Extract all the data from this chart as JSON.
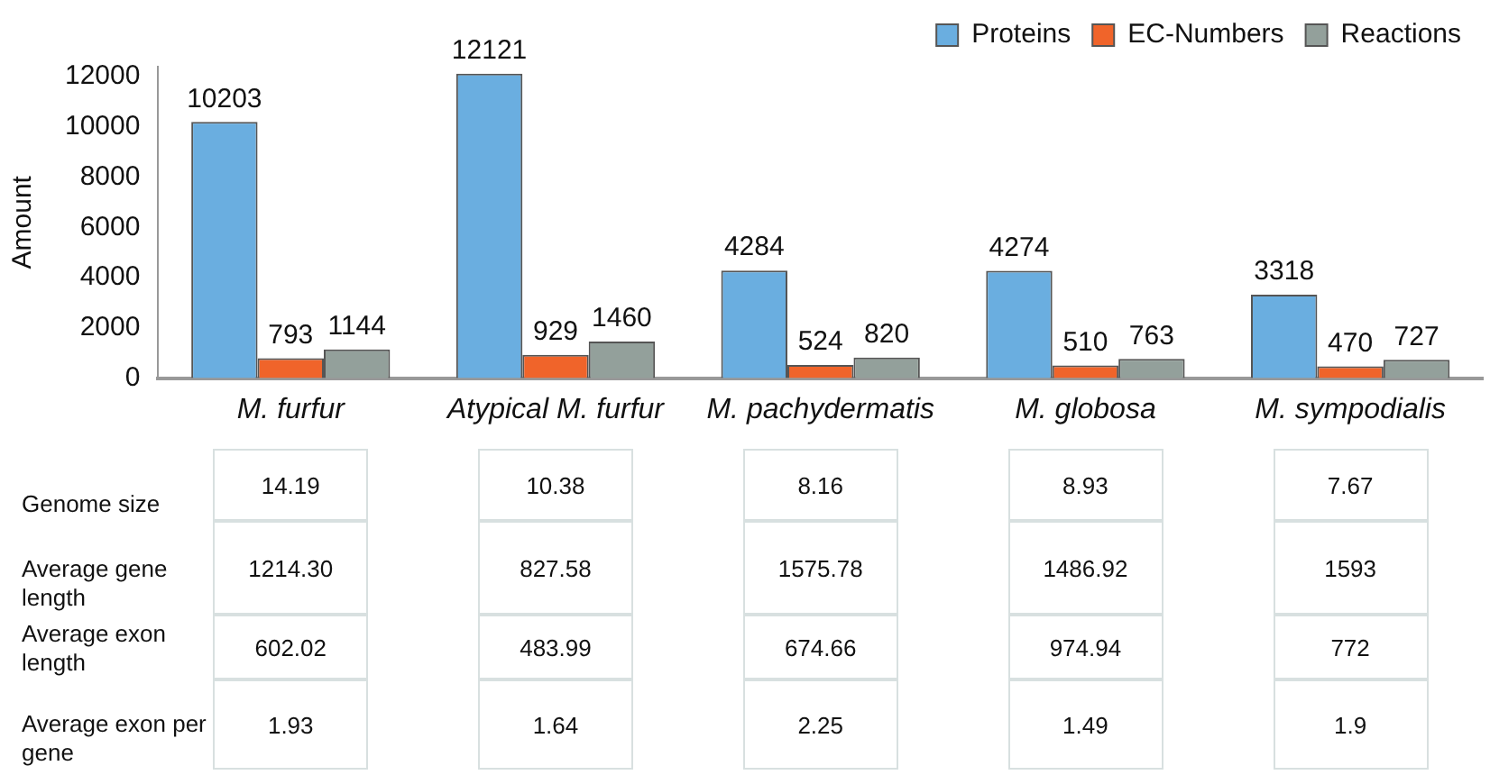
{
  "chart_data": [
    {
      "type": "bar",
      "ylabel": "Amount",
      "categories": [
        "M. furfur",
        "Atypical M. furfur",
        "M. pachydermatis",
        "M. globosa",
        "M. sympodialis"
      ],
      "series": [
        {
          "name": "Proteins",
          "color": "#6aaee0",
          "values": [
            10203,
            12121,
            4284,
            4274,
            3318
          ]
        },
        {
          "name": "EC-Numbers",
          "color": "#f0642a",
          "values": [
            793,
            929,
            524,
            510,
            470
          ]
        },
        {
          "name": "Reactions",
          "color": "#93a09b",
          "values": [
            1144,
            1460,
            820,
            763,
            727
          ]
        }
      ],
      "ylim": [
        0,
        12400
      ],
      "yticks": [
        0,
        2000,
        4000,
        6000,
        8000,
        10000,
        12000
      ],
      "grid": false,
      "legend": "top right",
      "data_labels": true
    },
    {
      "type": "heatmap",
      "categories": [
        null,
        null,
        null,
        null,
        null
      ],
      "y_categories": [
        "Genome size",
        "Average gene length",
        "Average exon length",
        "Average exon per gene"
      ],
      "cells": [
        [
          14.19,
          10.38,
          8.16,
          8.93,
          7.67
        ],
        [
          1214.3,
          827.58,
          1575.78,
          1486.92,
          1593
        ],
        [
          602.02,
          483.99,
          674.66,
          974.94,
          772
        ],
        [
          1.93,
          1.64,
          2.25,
          1.49,
          1.9
        ]
      ],
      "cell_labels": [
        [
          "14.19",
          "10.38",
          "8.16",
          "8.93",
          "7.67"
        ],
        [
          "1214.30",
          "827.58",
          "1575.78",
          "1486.92",
          "1593"
        ],
        [
          "602.02",
          "483.99",
          "674.66",
          "974.94",
          "772"
        ],
        [
          "1.93",
          "1.64",
          "2.25",
          "1.49",
          "1.9"
        ]
      ]
    }
  ]
}
